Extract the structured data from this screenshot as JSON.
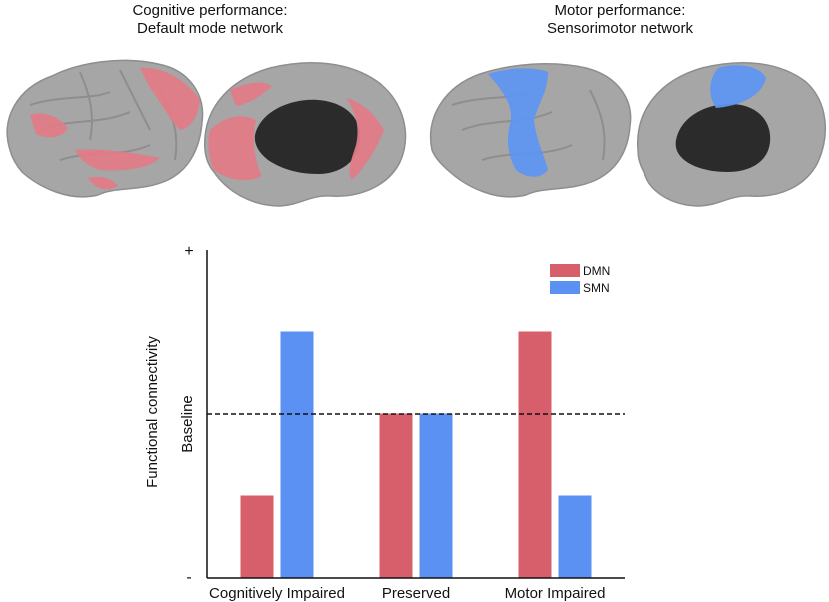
{
  "panels": {
    "left": {
      "title_line1": "Cognitive performance:",
      "title_line2": "Default mode network",
      "highlight_color": "#e07b86"
    },
    "right": {
      "title_line1": "Motor performance:",
      "title_line2": "Sensorimotor network",
      "highlight_color": "#5f95f0"
    }
  },
  "brain_colors": {
    "cortex": "#8e8e8e",
    "cortex_light": "#a6a6a6",
    "medial_wall": "#2b2b2b"
  },
  "chart_data": {
    "type": "bar",
    "categories": [
      "Cognitively Impaired",
      "Preserved",
      "Motor Impaired"
    ],
    "series": [
      {
        "name": "DMN",
        "color": "#d65f6b",
        "values": [
          -0.5,
          0,
          0.5
        ]
      },
      {
        "name": "SMN",
        "color": "#5b91f2",
        "values": [
          0.5,
          0,
          -0.5
        ]
      }
    ],
    "ylabel": "Functional connectivity",
    "baseline_label": "Baseline",
    "ytick_top": "+",
    "ytick_bottom": "-",
    "ylim": [
      -1,
      1
    ],
    "baseline": 0,
    "legend_position": "top-right"
  }
}
